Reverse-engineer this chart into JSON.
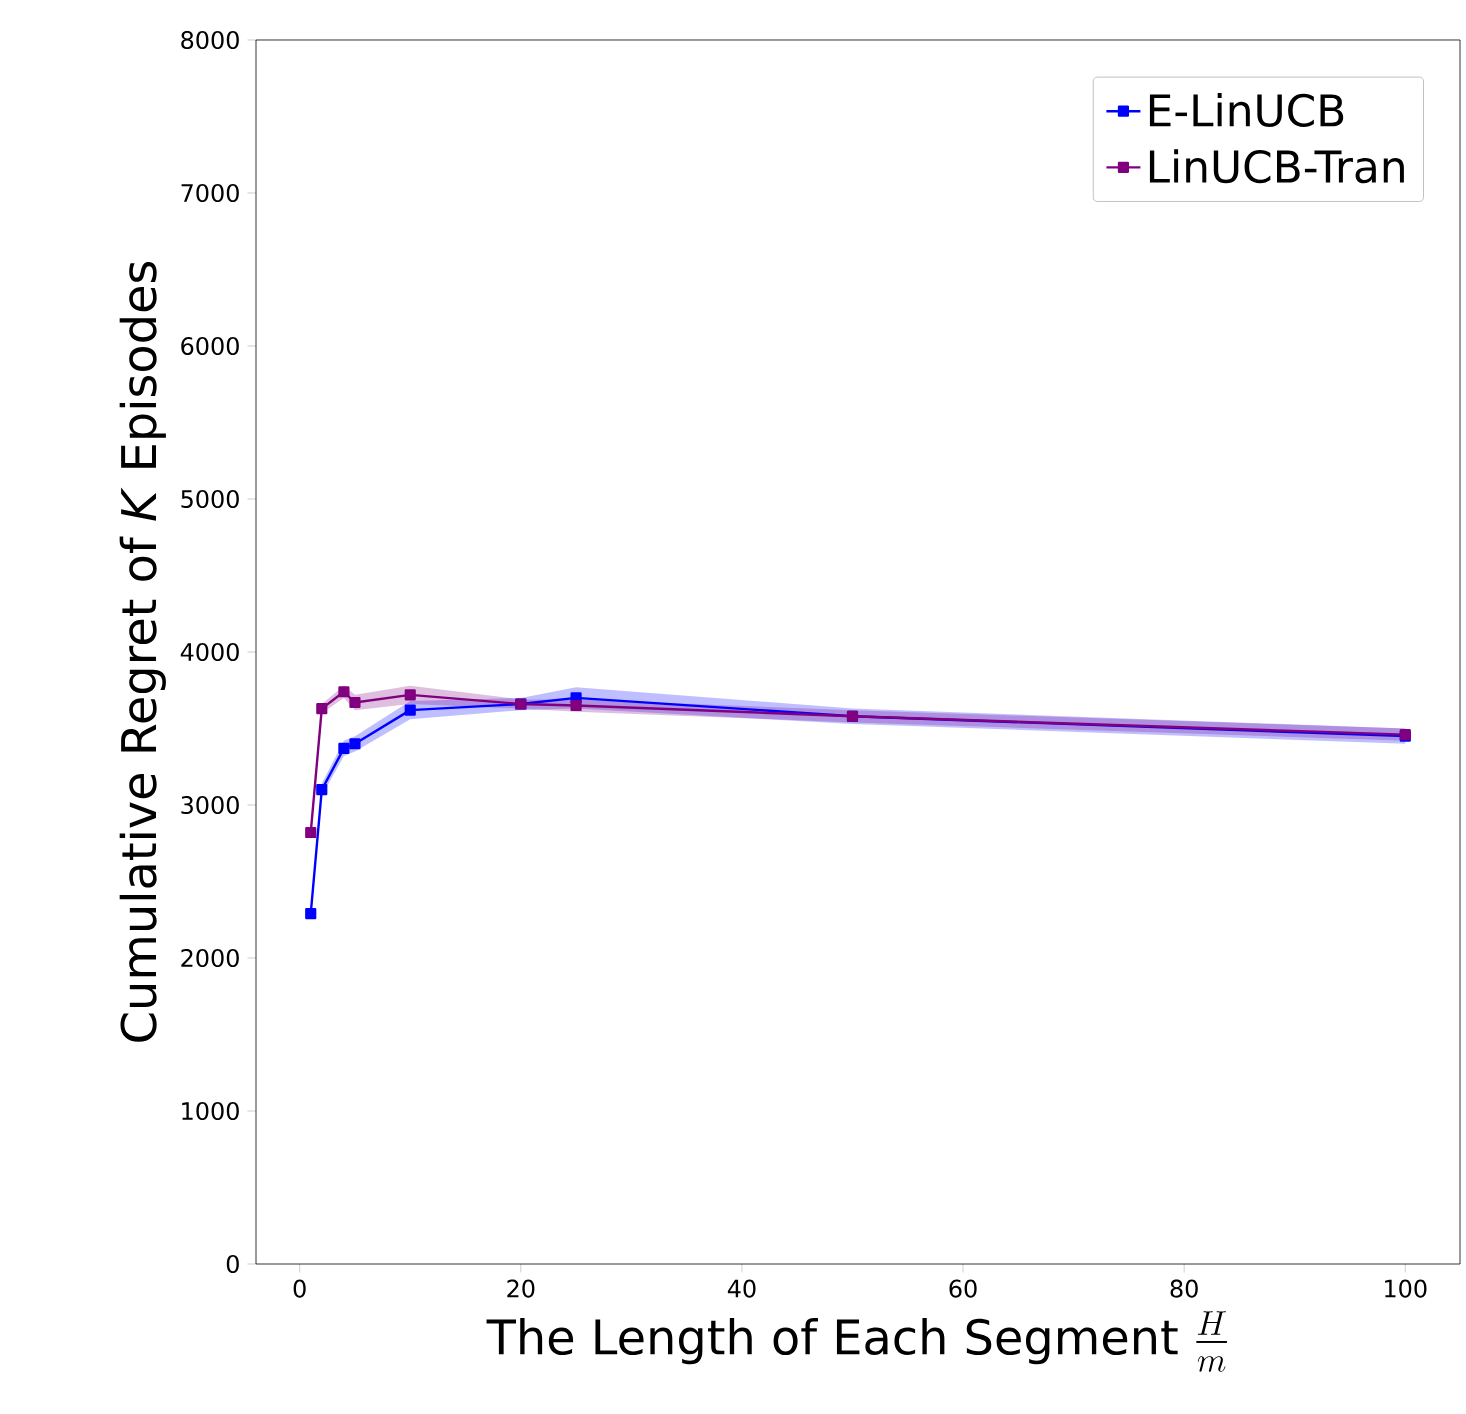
{
  "chart_data": {
    "type": "line",
    "xlabel": "\\text{The Length of Each Segment }\\frac{H}{m}",
    "ylabel": "Cumulative Regret of *K* Episodes",
    "series": [
      {
        "name": "E-LinUCB",
        "color": "#0000ff",
        "x": [
          1,
          2,
          4,
          5,
          10,
          20,
          25,
          50,
          100
        ],
        "values": [
          2290,
          3100,
          3370,
          3400,
          3620,
          3660,
          3700,
          3580,
          3450
        ],
        "lower": [
          2260,
          3060,
          3320,
          3350,
          3560,
          3620,
          3630,
          3530,
          3400
        ],
        "upper": [
          2320,
          3140,
          3420,
          3450,
          3680,
          3700,
          3770,
          3630,
          3500
        ]
      },
      {
        "name": "LinUCB-Tran",
        "color": "#800080",
        "x": [
          1,
          2,
          4,
          5,
          10,
          20,
          25,
          50,
          100
        ],
        "values": [
          2820,
          3630,
          3740,
          3670,
          3720,
          3660,
          3650,
          3580,
          3460
        ],
        "lower": [
          2790,
          3600,
          3700,
          3620,
          3660,
          3630,
          3610,
          3540,
          3420
        ],
        "upper": [
          2850,
          3660,
          3780,
          3720,
          3780,
          3690,
          3690,
          3620,
          3500
        ]
      }
    ],
    "xlim": [
      -3.95,
      104.95
    ],
    "ylim": [
      0,
      8000
    ],
    "xticks": [
      0,
      20,
      40,
      60,
      80,
      100
    ],
    "yticks": [
      0,
      1000,
      2000,
      3000,
      4000,
      5000,
      6000,
      7000,
      8000
    ],
    "grid": false,
    "legend": "top right",
    "marker": "square",
    "line_style": "solid"
  }
}
